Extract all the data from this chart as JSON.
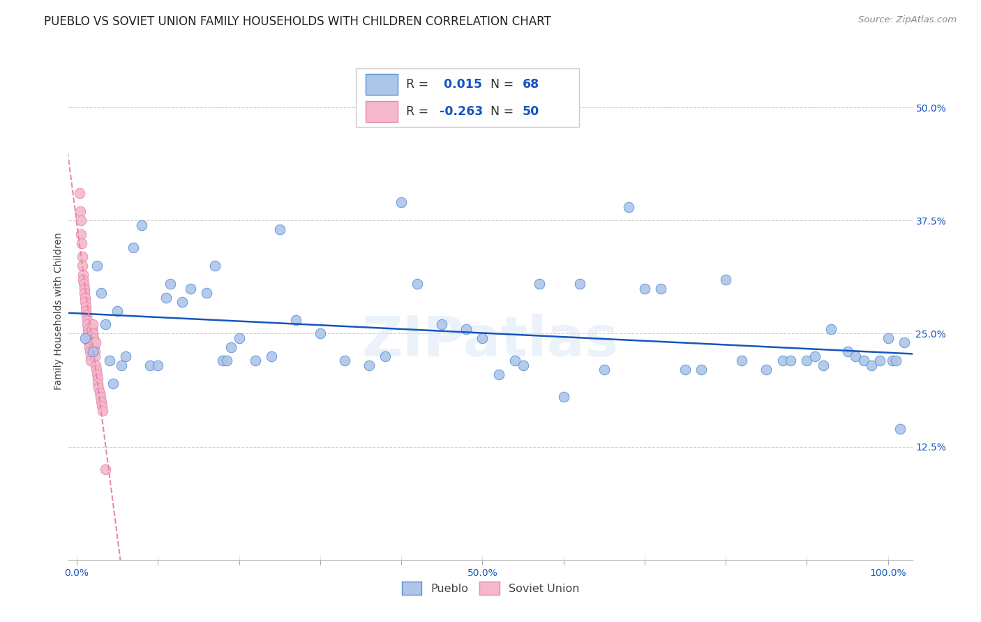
{
  "title": "PUEBLO VS SOVIET UNION FAMILY HOUSEHOLDS WITH CHILDREN CORRELATION CHART",
  "source": "Source: ZipAtlas.com",
  "ylabel": "Family Households with Children",
  "watermark": "ZIPatlas",
  "pueblo_R": 0.015,
  "pueblo_N": 68,
  "soviet_R": -0.263,
  "soviet_N": 50,
  "pueblo_color": "#adc6e8",
  "soviet_color": "#f5b8cb",
  "pueblo_edge_color": "#5b8dd9",
  "soviet_edge_color": "#e888a8",
  "pueblo_line_color": "#1455c0",
  "soviet_line_color": "#e888a8",
  "pueblo_points_x": [
    1.0,
    2.0,
    2.5,
    3.0,
    3.5,
    4.0,
    4.5,
    5.0,
    5.5,
    6.0,
    7.0,
    8.0,
    9.0,
    10.0,
    11.0,
    11.5,
    13.0,
    14.0,
    16.0,
    17.0,
    18.0,
    18.5,
    19.0,
    20.0,
    22.0,
    24.0,
    25.0,
    27.0,
    30.0,
    33.0,
    36.0,
    38.0,
    40.0,
    42.0,
    45.0,
    48.0,
    50.0,
    52.0,
    54.0,
    55.0,
    57.0,
    60.0,
    62.0,
    65.0,
    68.0,
    70.0,
    72.0,
    75.0,
    77.0,
    80.0,
    82.0,
    85.0,
    87.0,
    88.0,
    90.0,
    91.0,
    92.0,
    93.0,
    95.0,
    96.0,
    97.0,
    98.0,
    99.0,
    100.0,
    100.5,
    101.0,
    101.5,
    102.0
  ],
  "pueblo_points_y": [
    24.5,
    23.0,
    32.5,
    29.5,
    26.0,
    22.0,
    19.5,
    27.5,
    21.5,
    22.5,
    34.5,
    37.0,
    21.5,
    21.5,
    29.0,
    30.5,
    28.5,
    30.0,
    29.5,
    32.5,
    22.0,
    22.0,
    23.5,
    24.5,
    22.0,
    22.5,
    36.5,
    26.5,
    25.0,
    22.0,
    21.5,
    22.5,
    39.5,
    30.5,
    26.0,
    25.5,
    24.5,
    20.5,
    22.0,
    21.5,
    30.5,
    18.0,
    30.5,
    21.0,
    39.0,
    30.0,
    30.0,
    21.0,
    21.0,
    31.0,
    22.0,
    21.0,
    22.0,
    22.0,
    22.0,
    22.5,
    21.5,
    25.5,
    23.0,
    22.5,
    22.0,
    21.5,
    22.0,
    24.5,
    22.0,
    22.0,
    14.5,
    24.0
  ],
  "soviet_points_x": [
    0.3,
    0.4,
    0.5,
    0.55,
    0.6,
    0.65,
    0.7,
    0.75,
    0.8,
    0.85,
    0.9,
    0.95,
    1.0,
    1.05,
    1.1,
    1.15,
    1.2,
    1.25,
    1.3,
    1.35,
    1.4,
    1.45,
    1.5,
    1.55,
    1.6,
    1.7,
    1.75,
    1.8,
    1.85,
    1.9,
    1.95,
    2.0,
    2.05,
    2.1,
    2.15,
    2.2,
    2.25,
    2.3,
    2.35,
    2.4,
    2.5,
    2.55,
    2.6,
    2.7,
    2.8,
    2.9,
    3.0,
    3.1,
    3.2,
    3.5
  ],
  "soviet_points_y": [
    40.5,
    38.5,
    37.5,
    36.0,
    35.0,
    33.5,
    32.5,
    31.5,
    31.0,
    30.5,
    30.0,
    29.5,
    29.0,
    28.5,
    28.0,
    27.5,
    27.0,
    26.5,
    26.0,
    25.5,
    25.0,
    24.5,
    24.0,
    23.5,
    23.0,
    22.5,
    22.0,
    25.5,
    25.0,
    25.5,
    26.0,
    25.0,
    24.5,
    24.0,
    23.5,
    23.0,
    22.5,
    24.0,
    21.5,
    21.0,
    20.5,
    20.0,
    19.5,
    19.0,
    18.5,
    18.0,
    17.5,
    17.0,
    16.5,
    10.0
  ],
  "xlim": [
    -1.0,
    103.0
  ],
  "ylim": [
    0.0,
    55.0
  ],
  "xticks": [
    0.0,
    10.0,
    20.0,
    30.0,
    40.0,
    50.0,
    60.0,
    70.0,
    80.0,
    90.0,
    100.0
  ],
  "xticklabels": [
    "0.0%",
    "",
    "",
    "",
    "",
    "50.0%",
    "",
    "",
    "",
    "",
    "100.0%"
  ],
  "ytick_right_positions": [
    12.5,
    25.0,
    37.5,
    50.0
  ],
  "ytick_right_labels": [
    "12.5%",
    "25.0%",
    "37.5%",
    "50.0%"
  ],
  "title_fontsize": 12,
  "axis_fontsize": 10,
  "background_color": "#ffffff",
  "grid_color": "#d0d0d0"
}
